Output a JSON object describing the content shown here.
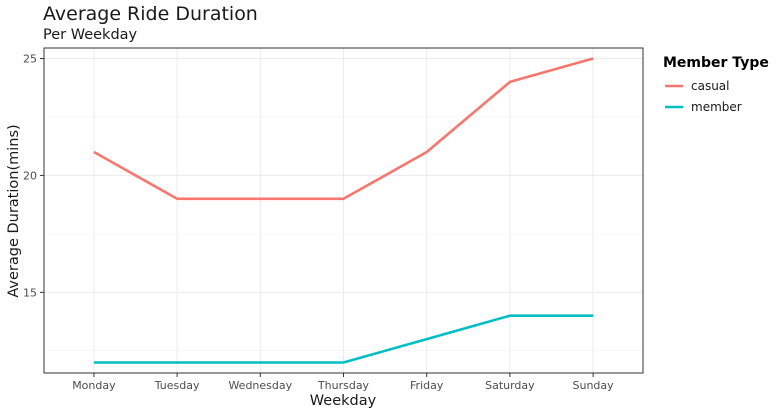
{
  "chart_data": {
    "type": "line",
    "title": "Average Ride Duration",
    "subtitle": "Per Weekday",
    "xlabel": "Weekday",
    "ylabel": "Average Duration(mins)",
    "categories": [
      "Monday",
      "Tuesday",
      "Wednesday",
      "Thursday",
      "Friday",
      "Saturday",
      "Sunday"
    ],
    "series": [
      {
        "name": "casual",
        "color": "#F8766D",
        "values": [
          21,
          19,
          19,
          19,
          21,
          24,
          25
        ]
      },
      {
        "name": "member",
        "color": "#00BFC4",
        "values": [
          12,
          12,
          12,
          12,
          13,
          14,
          14
        ]
      }
    ],
    "ylim": [
      11.55,
      25.45
    ],
    "yticks": [
      15,
      20,
      25
    ],
    "legend": {
      "title": "Member Type",
      "position": "right"
    },
    "grid": true
  }
}
